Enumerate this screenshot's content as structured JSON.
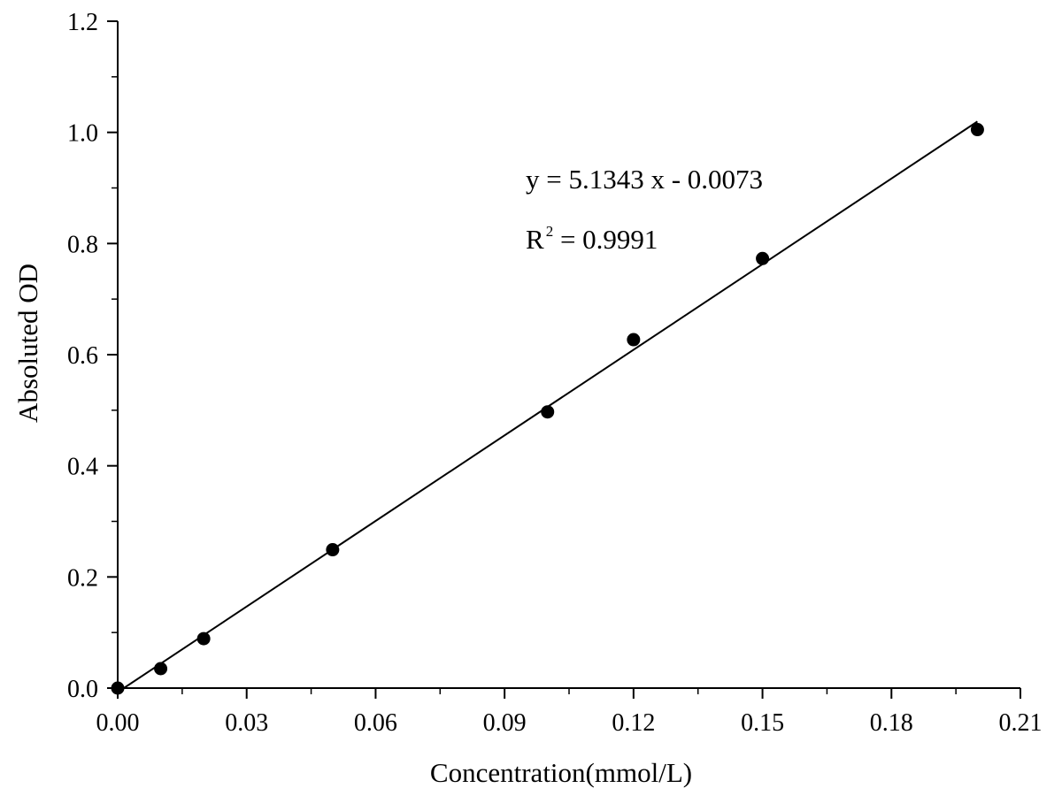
{
  "chart_data": {
    "type": "scatter",
    "title": "",
    "xlabel": "Concentration(mmol/L)",
    "ylabel": "Absoluted OD",
    "xlim": [
      0,
      0.21
    ],
    "ylim": [
      0,
      1.2
    ],
    "xticks": [
      "0.00",
      "0.03",
      "0.06",
      "0.09",
      "0.12",
      "0.15",
      "0.18",
      "0.21"
    ],
    "yticks": [
      "0.0",
      "0.2",
      "0.4",
      "0.6",
      "0.8",
      "1.0",
      "1.2"
    ],
    "grid": false,
    "legend": "none",
    "points": {
      "x": [
        0.0,
        0.01,
        0.02,
        0.05,
        0.1,
        0.12,
        0.15,
        0.2
      ],
      "y": [
        0.0,
        0.035,
        0.089,
        0.249,
        0.497,
        0.627,
        0.773,
        1.005
      ]
    },
    "fit": {
      "slope": 5.1343,
      "intercept": -0.0073,
      "equation": "y = 5.1343 x - 0.0073",
      "r2_prefix": "R",
      "r2_exponent": "2",
      "r2_value": " = 0.9991"
    },
    "colors": {
      "axis": "#000000",
      "marker": "#000000",
      "line": "#000000"
    }
  }
}
